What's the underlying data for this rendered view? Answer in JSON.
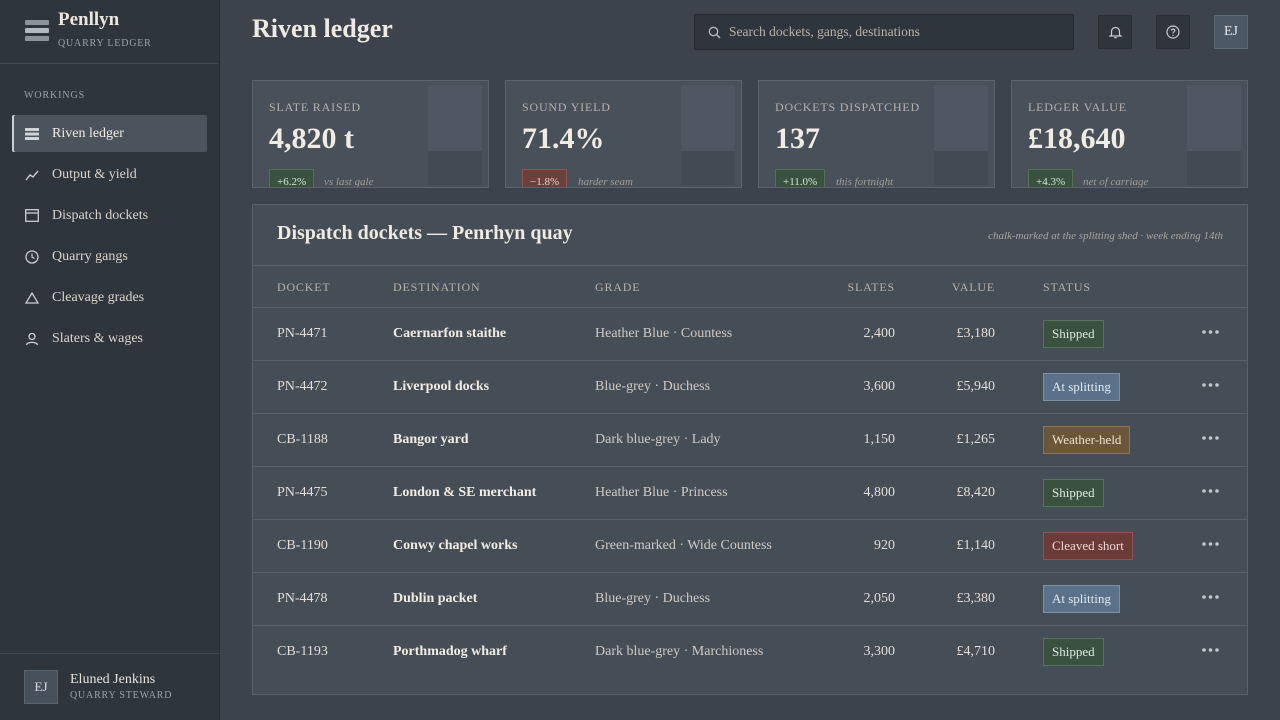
{
  "brand": {
    "name": "Penllyn",
    "subtitle": "QUARRY LEDGER"
  },
  "nav": {
    "heading": "WORKINGS",
    "items": [
      {
        "label": "Riven ledger",
        "icon": "ledger-icon",
        "active": true
      },
      {
        "label": "Output & yield",
        "icon": "trend-line-icon"
      },
      {
        "label": "Dispatch dockets",
        "icon": "docket-icon"
      },
      {
        "label": "Quarry gangs",
        "icon": "clock-icon"
      },
      {
        "label": "Cleavage grades",
        "icon": "triangle-icon"
      },
      {
        "label": "Slaters & wages",
        "icon": "person-icon"
      }
    ]
  },
  "user": {
    "initials": "EJ",
    "name": "Eluned Jenkins",
    "role": "QUARRY STEWARD"
  },
  "header": {
    "title": "Riven ledger",
    "search_placeholder": "Search dockets, gangs, destinations",
    "avatar_initials": "EJ"
  },
  "kpis": [
    {
      "label": "SLATE RAISED",
      "value": "4,820 t",
      "change": "+6.2%",
      "trend": "up",
      "note": "vs last gale"
    },
    {
      "label": "SOUND YIELD",
      "value": "71.4%",
      "change": "−1.8%",
      "trend": "down",
      "note": "harder seam"
    },
    {
      "label": "DOCKETS DISPATCHED",
      "value": "137",
      "change": "+11.0%",
      "trend": "up",
      "note": "this fortnight"
    },
    {
      "label": "LEDGER VALUE",
      "value": "£18,640",
      "change": "+4.3%",
      "trend": "up",
      "note": "net of carriage"
    }
  ],
  "table": {
    "title": "Dispatch dockets — Penrhyn quay",
    "note": "chalk-marked at the splitting shed · week ending 14th",
    "columns": [
      "DOCKET",
      "DESTINATION",
      "GRADE",
      "SLATES",
      "VALUE",
      "STATUS"
    ],
    "rows": [
      {
        "docket": "PN-4471",
        "destination": "Caernarfon staithe",
        "grade": "Heather Blue · Countess",
        "slates": "2,400",
        "value": "£3,180",
        "status": "Shipped",
        "status_kind": "shipped"
      },
      {
        "docket": "PN-4472",
        "destination": "Liverpool docks",
        "grade": "Blue-grey · Duchess",
        "slates": "3,600",
        "value": "£5,940",
        "status": "At splitting",
        "status_kind": "splitting"
      },
      {
        "docket": "CB-1188",
        "destination": "Bangor yard",
        "grade": "Dark blue-grey · Lady",
        "slates": "1,150",
        "value": "£1,265",
        "status": "Weather-held",
        "status_kind": "weather"
      },
      {
        "docket": "PN-4475",
        "destination": "London & SE merchant",
        "grade": "Heather Blue · Princess",
        "slates": "4,800",
        "value": "£8,420",
        "status": "Shipped",
        "status_kind": "shipped"
      },
      {
        "docket": "CB-1190",
        "destination": "Conwy chapel works",
        "grade": "Green-marked · Wide Countess",
        "slates": "920",
        "value": "£1,140",
        "status": "Cleaved short",
        "status_kind": "short"
      },
      {
        "docket": "PN-4478",
        "destination": "Dublin packet",
        "grade": "Blue-grey · Duchess",
        "slates": "2,050",
        "value": "£3,380",
        "status": "At splitting",
        "status_kind": "splitting"
      },
      {
        "docket": "CB-1193",
        "destination": "Porthmadog wharf",
        "grade": "Dark blue-grey · Marchioness",
        "slates": "3,300",
        "value": "£4,710",
        "status": "Shipped",
        "status_kind": "shipped"
      }
    ]
  },
  "colors": {
    "background": "#3c434c",
    "sidebar": "#2f353d",
    "shipped": "#3b5140",
    "splitting": "#5a7189",
    "weather_held": "#6b5639",
    "cleaved_short": "#6a3b38"
  }
}
